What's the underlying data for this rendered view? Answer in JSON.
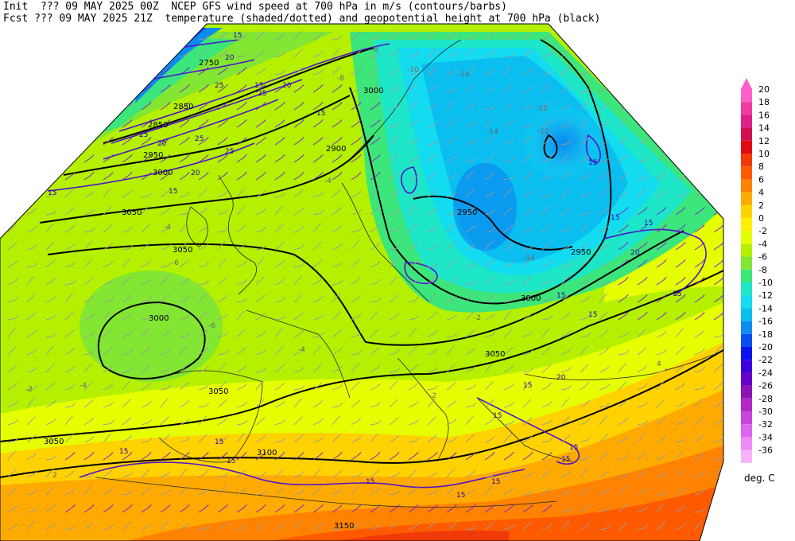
{
  "header": {
    "line1": "Init  ??? 09 MAY 2025 00Z  NCEP GFS wind speed at 700 hPa in m/s (contours/barbs)",
    "line2": "Fcst ??? 09 MAY 2025 21Z  temperature (shaded/dotted) and geopotential height at 700 hPa (black)"
  },
  "colorbar": {
    "unit": "deg. C",
    "levels": [
      {
        "label": "20",
        "color": "#ff5fc8"
      },
      {
        "label": "18",
        "color": "#f03ca0"
      },
      {
        "label": "16",
        "color": "#e0208c"
      },
      {
        "label": "14",
        "color": "#d01050"
      },
      {
        "label": "12",
        "color": "#e00a14"
      },
      {
        "label": "10",
        "color": "#f03a0a"
      },
      {
        "label": "8",
        "color": "#ff5a00"
      },
      {
        "label": "6",
        "color": "#ff8200"
      },
      {
        "label": "4",
        "color": "#ffaa00"
      },
      {
        "label": "2",
        "color": "#ffd200"
      },
      {
        "label": "0",
        "color": "#fff000"
      },
      {
        "label": "-2",
        "color": "#e6ff00"
      },
      {
        "label": "-4",
        "color": "#b4f000"
      },
      {
        "label": "-6",
        "color": "#82e632"
      },
      {
        "label": "-8",
        "color": "#3ce67a"
      },
      {
        "label": "-10",
        "color": "#1ee6c8"
      },
      {
        "label": "-12",
        "color": "#14dcf0"
      },
      {
        "label": "-14",
        "color": "#0abef0"
      },
      {
        "label": "-16",
        "color": "#0a8cf0"
      },
      {
        "label": "-18",
        "color": "#0a50f0"
      },
      {
        "label": "-20",
        "color": "#0a14f0"
      },
      {
        "label": "-22",
        "color": "#3c00dc"
      },
      {
        "label": "-24",
        "color": "#6400c8"
      },
      {
        "label": "-26",
        "color": "#8c14b4"
      },
      {
        "label": "-28",
        "color": "#b428c8"
      },
      {
        "label": "-30",
        "color": "#c846dc"
      },
      {
        "label": "-32",
        "color": "#dc64f0"
      },
      {
        "label": "-34",
        "color": "#ee8cf5"
      },
      {
        "label": "-36",
        "color": "#f5b4fa"
      }
    ]
  },
  "map": {
    "height_labels": [
      "3150",
      "3100",
      "3050",
      "3050",
      "3050",
      "3050",
      "3050",
      "3000",
      "3000",
      "3000",
      "3000",
      "2950",
      "2950",
      "2950",
      "2900",
      "2850",
      "2850",
      "2750"
    ],
    "wind_labels": [
      "15",
      "15",
      "15",
      "15",
      "15",
      "15",
      "15",
      "15",
      "15",
      "15",
      "15",
      "15",
      "15",
      "15",
      "15",
      "15",
      "15",
      "15",
      "15",
      "15",
      "15",
      "20",
      "20",
      "20",
      "20",
      "20",
      "20",
      "25",
      "25",
      "25",
      "25",
      "25"
    ],
    "temp_labels": [
      "-2",
      "-2",
      "-4",
      "-4",
      "-4",
      "-4",
      "-6",
      "-6",
      "-8",
      "-8",
      "-10",
      "-12",
      "-12",
      "-14",
      "-14",
      "-14",
      "-2",
      "4",
      "2"
    ]
  }
}
